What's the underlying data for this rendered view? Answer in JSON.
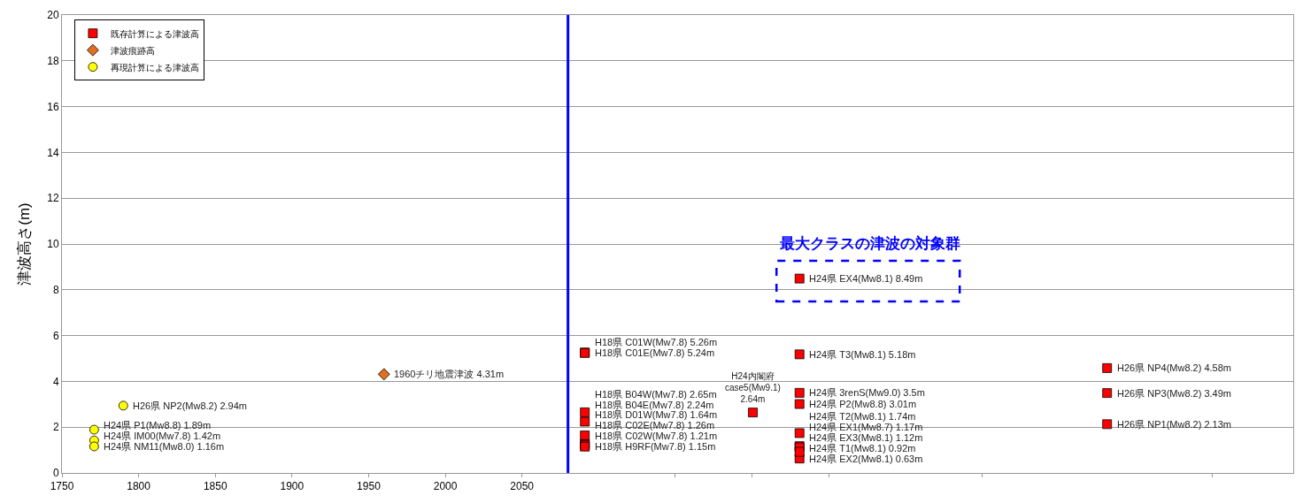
{
  "chart_data": {
    "type": "scatter",
    "ylabel": "津波高さ(m)",
    "xlim": [
      1750,
      2553
    ],
    "ylim": [
      0,
      20
    ],
    "xticks": [
      1750,
      1800,
      1850,
      1900,
      1950,
      2000,
      2050,
      {
        "value": 2150,
        "label": null
      },
      {
        "value": 2200,
        "label": null
      },
      {
        "value": 2250,
        "label": null
      },
      {
        "value": 2350,
        "label": null
      },
      {
        "value": 2500,
        "label": null
      }
    ],
    "yticks": [
      0,
      2,
      4,
      6,
      8,
      10,
      12,
      14,
      16,
      18,
      20
    ],
    "grid": "y",
    "legend": "top left",
    "series": [
      {
        "name": "既存計算による津波高",
        "color": "#ff0000",
        "marker": "square",
        "x": [
          2091,
          2091,
          2091,
          2091,
          2091,
          2091,
          2091,
          2091,
          2200.6,
          2231,
          2231,
          2231,
          2231,
          2231,
          2231,
          2231,
          2231,
          2231,
          2431.6,
          2431.6,
          2431.6
        ],
        "values": [
          5.26,
          5.24,
          2.65,
          2.24,
          1.64,
          1.26,
          1.21,
          1.15,
          2.64,
          8.49,
          5.18,
          3.5,
          3.01,
          1.74,
          1.17,
          1.12,
          0.63,
          0.92,
          4.58,
          3.49,
          2.13
        ],
        "value_labels": [
          "H18県 C01W(Mw7.8) 5.26m",
          "H18県 C01E(Mw7.8) 5.24m",
          "H18県 B04W(Mw7.8) 2.65m",
          "H18県 B04E(Mw7.8) 2.24m",
          "H18県 D01W(Mw7.8) 1.64m",
          "H18県 C02E(Mw7.8) 1.26m",
          "H18県 C02W(Mw7.8) 1.21m",
          "H18県 H9RF(Mw7.8) 1.15m",
          "H24内閣府\ncase5(Mw9.1)\n2.64m",
          "H24県 EX4(Mw8.1) 8.49m",
          "H24県 T3(Mw8.1) 5.18m",
          "H24県 3renS(Mw9.0) 3.5m",
          "H24県 P2(Mw8.8) 3.01m",
          "H24県 T2(Mw8.1) 1.74m",
          "H24県 EX1(Mw8.7) 1.17m",
          "H24県 EX3(Mw8.1) 1.12m",
          "H24県 EX2(Mw8.1) 0.63m",
          "H24県 T1(Mw8.1) 0.92m",
          "H26県 NP4(Mw8.2) 4.58m",
          "H26県 NP3(Mw8.2) 3.49m",
          "H26県 NP1(Mw8.2) 2.13m"
        ]
      },
      {
        "name": "津波痕跡高",
        "color": "#e07020",
        "marker": "diamond",
        "x": [
          1960
        ],
        "values": [
          4.31
        ],
        "value_labels": [
          "1960チリ地震津波 4.31m"
        ]
      },
      {
        "name": "再現計算による津波高",
        "color": "#ffff00",
        "marker": "circle",
        "x": [
          1771,
          1771,
          1771,
          1790
        ],
        "values": [
          1.89,
          1.42,
          1.16,
          2.94
        ],
        "value_labels": [
          "H24県 P1(Mw8.8) 1.89m",
          "H24県 IM00(Mw7.8) 1.42m",
          "H24県 NM11(Mw8.0) 1.16m",
          "H26県 NP2(Mw8.2) 2.94m"
        ]
      }
    ],
    "ref_lines": [
      {
        "axis": "x",
        "value": 2080,
        "color": "#0000ff"
      }
    ],
    "annotations": [
      {
        "text": "最大クラスの津波の対象群",
        "x": 2231,
        "y": 8.49
      }
    ]
  }
}
